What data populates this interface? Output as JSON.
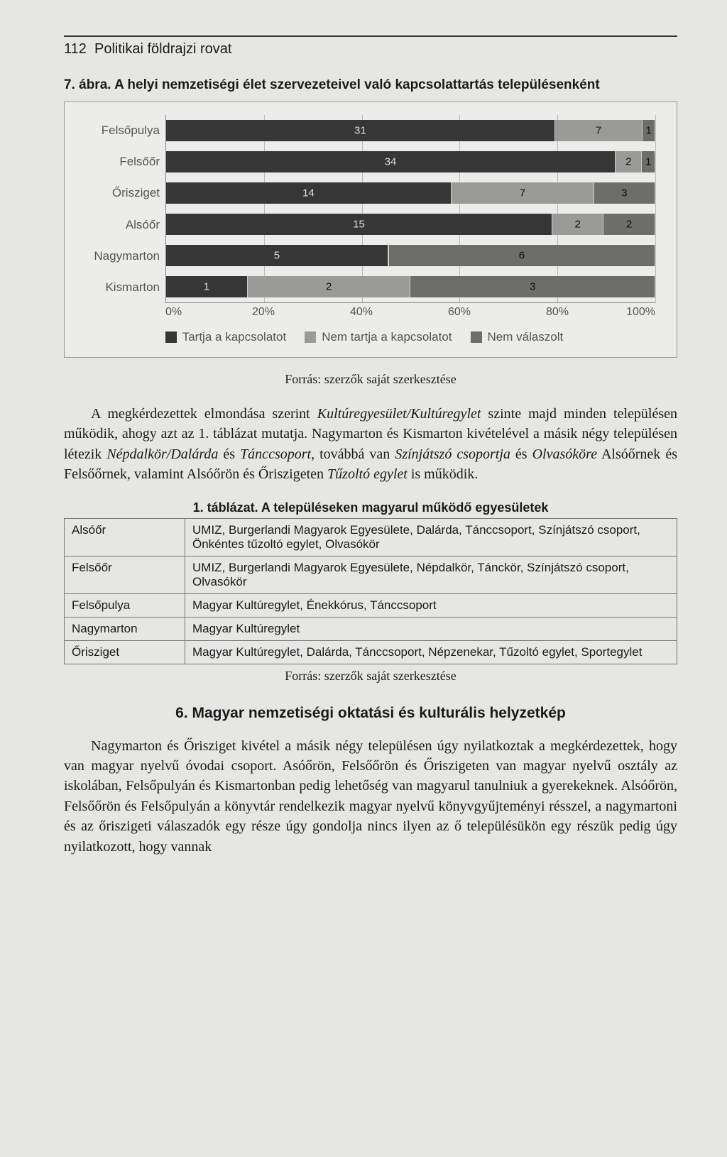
{
  "header": {
    "page_number": "112",
    "section": "Politikai földrajzi rovat"
  },
  "figure": {
    "number": "7. ábra.",
    "title": "A helyi nemzetiségi élet szervezeteivel való kapcsolattartás településenként",
    "chart": {
      "type": "stacked-bar-horizontal",
      "categories": [
        "Felsőpulya",
        "Felsőőr",
        "Őrisziget",
        "Alsóőr",
        "Nagymarton",
        "Kismarton"
      ],
      "series_labels": [
        "Tartja a kapcsolatot",
        "Nem tartja a kapcsolatot",
        "Nem válaszolt"
      ],
      "series_colors": [
        "#363636",
        "#9a9a98",
        "#6d6d6b"
      ],
      "rows": [
        {
          "vals": [
            31,
            7,
            1
          ]
        },
        {
          "vals": [
            34,
            2,
            1
          ]
        },
        {
          "vals": [
            14,
            7,
            3
          ]
        },
        {
          "vals": [
            15,
            2,
            2
          ]
        },
        {
          "vals": [
            5,
            0,
            6
          ]
        },
        {
          "vals": [
            1,
            2,
            3
          ]
        }
      ],
      "x_ticks": [
        "0%",
        "20%",
        "40%",
        "60%",
        "80%",
        "100%"
      ],
      "background_color": "#ececea",
      "grid_color": "#bbbbbb"
    },
    "source": "Forrás: szerzők saját szerkesztése"
  },
  "paragraph1_html": "A megkérdezettek elmondása szerint <em>Kultúregyesület/Kultúregylet</em> szinte majd minden településen működik, ahogy azt az 1. táblázat mutatja. Nagymarton és Kismarton kivételével a másik négy településen létezik <em>Népdalkör/Dalárda</em> és <em>Tánccsoport</em>, továbbá van <em>Színjátszó csoportja</em> és <em>Olvasóköre</em> Alsóőrnek és Felsőőrnek, valamint Alsóőrön és Őriszigeten <em>Tűzoltó egylet</em> is működik.",
  "table": {
    "title": "1. táblázat. A településeken magyarul működő egyesületek",
    "rows": [
      {
        "loc": "Alsóőr",
        "txt": "UMIZ, Burgerlandi Magyarok Egyesülete, Dalárda, Tánccsoport, Színjátszó csoport, Önkéntes tűzoltó egylet, Olvasókör"
      },
      {
        "loc": "Felsőőr",
        "txt": "UMIZ, Burgerlandi Magyarok Egyesülete, Népdalkör, Tánckör, Színjátszó csoport, Olvasókör"
      },
      {
        "loc": "Felsőpulya",
        "txt": "Magyar Kultúregylet, Énekkórus, Tánccsoport"
      },
      {
        "loc": "Nagymarton",
        "txt": "Magyar Kultúregylet"
      },
      {
        "loc": "Őrisziget",
        "txt": "Magyar Kultúregylet, Dalárda, Tánccsoport, Népzenekar, Tűzoltó egylet, Sportegylet"
      }
    ],
    "source": "Forrás: szerzők saját szerkesztése"
  },
  "section6": {
    "title": "6. Magyar nemzetiségi oktatási és kulturális helyzetkép",
    "paragraph": "Nagymarton és Őrisziget kivétel a másik négy településen úgy nyilatkoztak a megkérdezettek, hogy van magyar nyelvű óvodai csoport. Asóőrön, Felsőőrön és Őriszigeten van magyar nyelvű osztály az iskolában, Felsőpulyán és Kismartonban pedig lehetőség van magyarul tanulniuk a gyerekeknek. Alsóőrön, Felsőőrön és Felsőpulyán a könyvtár rendelkezik magyar nyelvű könyvgyűjteményi résszel, a nagymartoni és az őriszigeti válaszadók egy része úgy gondolja nincs ilyen az ő településükön egy részük pedig úgy nyilatkozott, hogy vannak"
  }
}
